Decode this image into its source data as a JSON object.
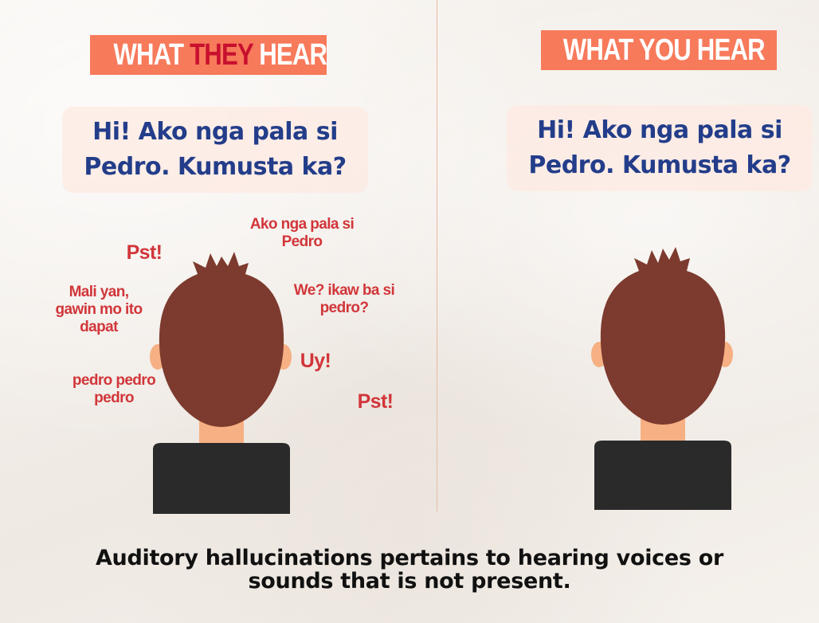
{
  "left_panel": {
    "banner": {
      "part1": "WHAT ",
      "emphasis": "THEY",
      "part2": " HEAR"
    },
    "speech": {
      "line1": "Hi! Ako nga pala si",
      "line2": "Pedro. Kumusta ka?"
    },
    "voices": {
      "ako_line1": "Ako nga pala si",
      "ako_line2": "Pedro",
      "pst_top": "Pst!",
      "mali_line1": "Mali yan,",
      "mali_line2": "gawin mo ito",
      "mali_line3": "dapat",
      "we_line1": "We? ikaw ba si",
      "we_line2": "pedro?",
      "uy": "Uy!",
      "pedro_line1": "pedro pedro",
      "pedro_line2": "pedro",
      "pst_bottom": "Pst!"
    }
  },
  "right_panel": {
    "banner": {
      "text": "WHAT YOU HEAR"
    },
    "speech": {
      "line1": "Hi! Ako nga pala si",
      "line2": "Pedro. Kumusta ka?"
    }
  },
  "caption": {
    "line1": "Auditory hallucinations pertains to hearing voices or",
    "line2": "sounds that is not present."
  },
  "colors": {
    "banner": "#f77a5b",
    "banner_emphasis": "#c8102e",
    "speech_text": "#233d8a",
    "voice_text": "#d1363a",
    "hair": "#7d3a2e",
    "skin": "#f6b083",
    "shirt": "#2a2a2a"
  },
  "icons": {
    "figure": "person-back-view-icon"
  }
}
